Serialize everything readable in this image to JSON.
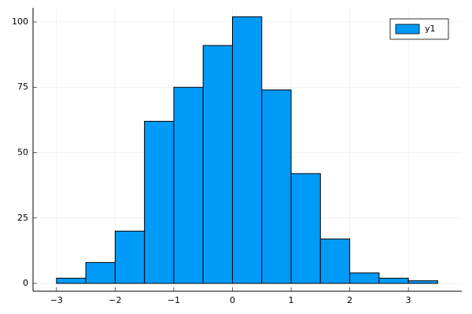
{
  "chart_data": {
    "type": "histogram",
    "bins": [
      -3,
      -2.5,
      -2,
      -1.5,
      -1,
      -0.5,
      0,
      0.5,
      1,
      1.5,
      2,
      2.5,
      3,
      3.5
    ],
    "series": [
      {
        "name": "y1",
        "color": "#009af9",
        "values": [
          2,
          8,
          20,
          62,
          75,
          91,
          102,
          74,
          42,
          17,
          4,
          2,
          1
        ]
      }
    ],
    "xlim": [
      -3.4,
      3.91
    ],
    "xticks": [
      {
        "value": -3,
        "label": "−3"
      },
      {
        "value": -2,
        "label": "−2"
      },
      {
        "value": -1,
        "label": "−1"
      },
      0,
      1,
      2,
      3
    ],
    "ylim": [
      -3,
      105.4
    ],
    "yticks": [
      0,
      25,
      50,
      75,
      100
    ],
    "grid": true,
    "legend": "top-right"
  }
}
